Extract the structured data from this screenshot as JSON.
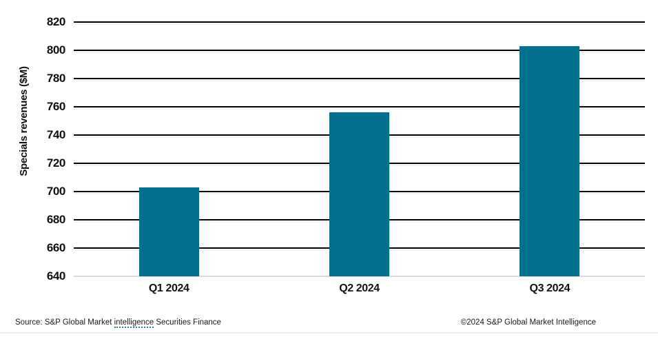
{
  "chart_data": {
    "type": "bar",
    "title": "",
    "xlabel": "",
    "ylabel": "Specials revenues ($M)",
    "categories": [
      "Q1 2024",
      "Q2 2024",
      "Q3 2024"
    ],
    "values": [
      703,
      756,
      803
    ],
    "ylim": [
      640,
      820
    ],
    "ytick_step": 20,
    "yticks": [
      820,
      800,
      780,
      760,
      740,
      720,
      700,
      680,
      660,
      640
    ],
    "grid": true,
    "legend": false,
    "bar_color": "#00708E",
    "gridline_color": "#000000",
    "baseline_color": "#d9d9d9"
  },
  "footer": {
    "source_prefix": "Source: S&P Global Market ",
    "source_flagged_word": "intelligence",
    "source_suffix": " Securities Finance",
    "copyright": "©2024 S&P Global Market Intelligence"
  }
}
